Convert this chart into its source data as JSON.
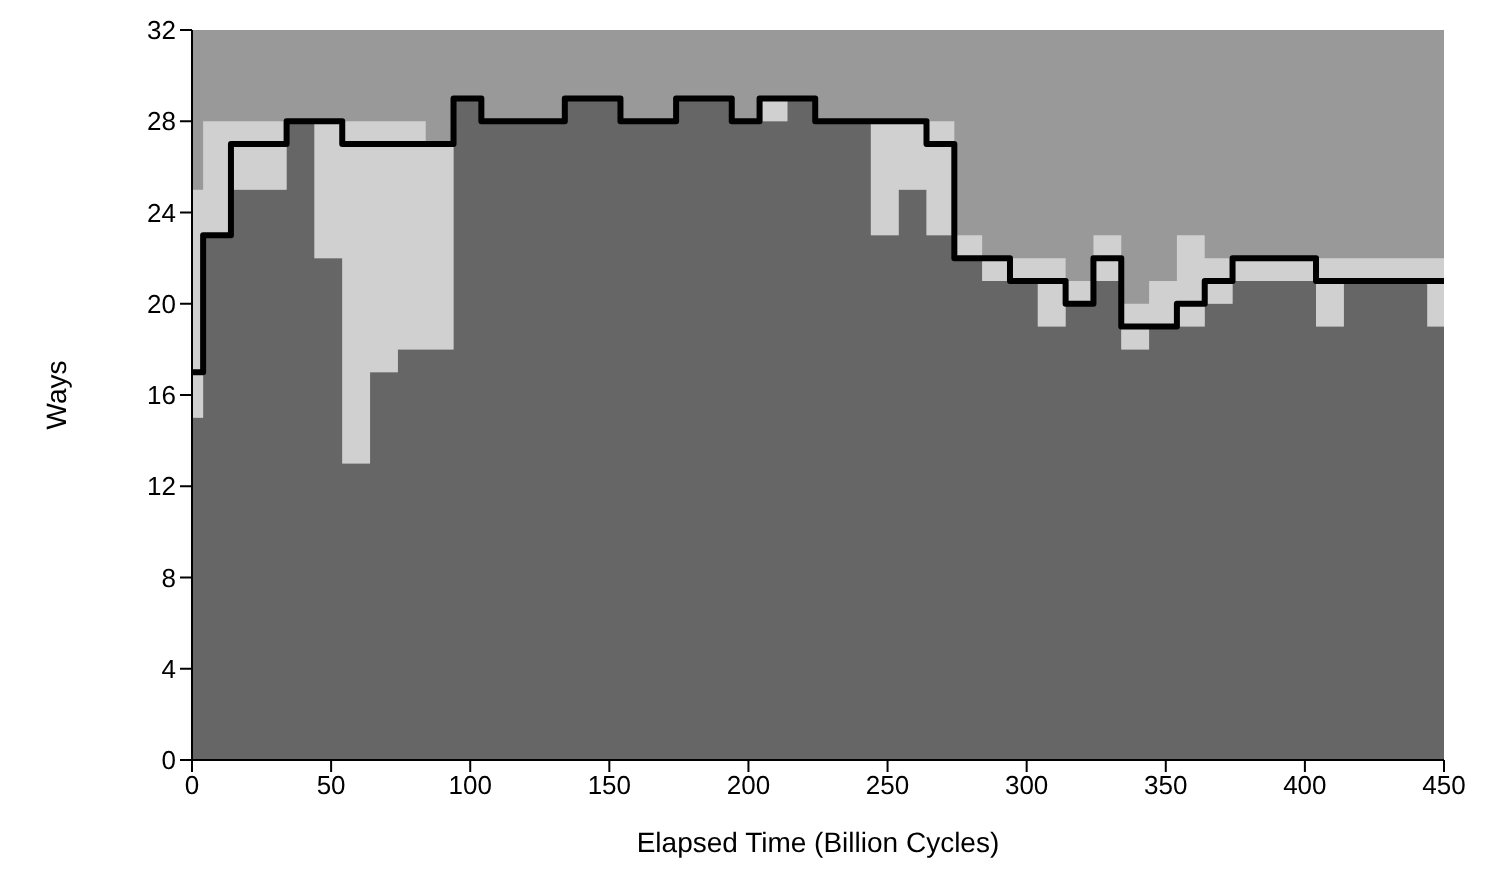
{
  "chart_data": {
    "type": "step",
    "xlabel": "Elapsed Time (Billion Cycles)",
    "ylabel": "Ways",
    "x": [
      0,
      4,
      14,
      24,
      34,
      44,
      54,
      64,
      74,
      84,
      94,
      104,
      114,
      124,
      134,
      144,
      154,
      164,
      174,
      184,
      194,
      204,
      214,
      224,
      234,
      244,
      254,
      264,
      274,
      284,
      294,
      304,
      314,
      324,
      334,
      344,
      354,
      364,
      374,
      384,
      394,
      404,
      414,
      424,
      434,
      444,
      450
    ],
    "series": [
      {
        "type": "area",
        "color": "#666666",
        "values": [
          15,
          23,
          25,
          25,
          28,
          22,
          13,
          17,
          18,
          18,
          29,
          28,
          28,
          28,
          29,
          29,
          28,
          28,
          29,
          29,
          28,
          28,
          29,
          28,
          28,
          23,
          25,
          23,
          22,
          21,
          21,
          19,
          20,
          21,
          18,
          19,
          19,
          20,
          21,
          21,
          21,
          19,
          21,
          21,
          21,
          19,
          19
        ]
      },
      {
        "type": "area",
        "color": "#d0d0d0",
        "values": [
          10,
          5,
          3,
          3,
          0,
          6,
          15,
          11,
          10,
          9,
          0,
          0,
          0,
          0,
          0,
          0,
          0,
          0,
          0,
          0,
          0,
          1,
          0,
          0,
          0,
          5,
          3,
          5,
          1,
          1,
          1,
          3,
          1,
          2,
          2,
          2,
          4,
          2,
          1,
          1,
          1,
          3,
          1,
          1,
          1,
          3,
          3
        ]
      },
      {
        "type": "step",
        "color": "#000000",
        "values": [
          17,
          23,
          27,
          27,
          28,
          28,
          27,
          27,
          27,
          27,
          29,
          28,
          28,
          28,
          29,
          29,
          28,
          28,
          29,
          29,
          28,
          29,
          29,
          28,
          28,
          28,
          28,
          27,
          22,
          22,
          21,
          21,
          20,
          22,
          19,
          19,
          20,
          21,
          22,
          22,
          22,
          21,
          21,
          21,
          21,
          21,
          21
        ]
      }
    ],
    "stacked": true,
    "xlim": [
      0,
      450
    ],
    "xticks": [
      0,
      50,
      100,
      150,
      200,
      250,
      300,
      350,
      400,
      450
    ],
    "ylim": [
      0,
      32
    ],
    "yticks": [
      0,
      4,
      8,
      12,
      16,
      20,
      24,
      28,
      32
    ]
  }
}
